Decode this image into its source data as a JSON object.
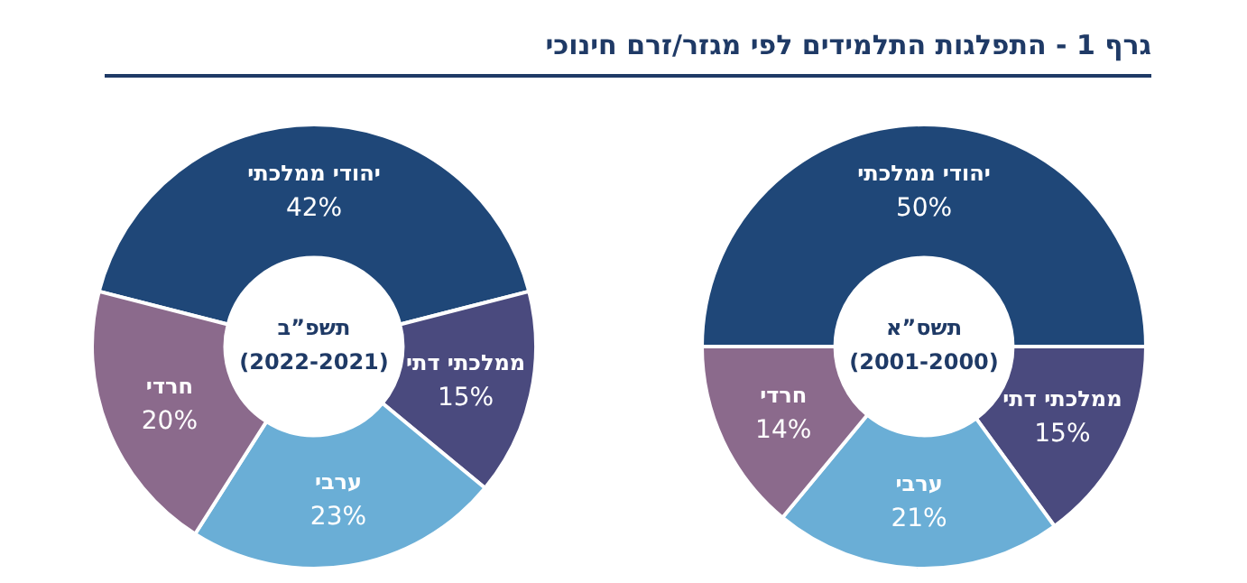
{
  "chart_data": [
    {
      "type": "donut",
      "title": "גרף 1 - התפלגות התלמידים לפי מגזר/זרם חינוכי",
      "annotations": [
        "תשס”א",
        "(2001-2000)"
      ],
      "categories": [
        "יהודי ממלכתי",
        "ממלכתי דתי",
        "ערבי",
        "חרדי"
      ],
      "values": [
        50,
        15,
        21,
        14
      ],
      "value_labels": [
        "50%",
        "15%",
        "21%",
        "14%"
      ],
      "colors": [
        "#1f4778",
        "#4a4a7e",
        "#6aaed6",
        "#8b6a8c"
      ],
      "legend": false
    },
    {
      "type": "donut",
      "annotations": [
        "תשפ”ב",
        "(2022-2021)"
      ],
      "categories": [
        "יהודי ממלכתי",
        "ממלכתי דתי",
        "ערבי",
        "חרדי"
      ],
      "values": [
        42,
        15,
        23,
        20
      ],
      "value_labels": [
        "42%",
        "15%",
        "23%",
        "20%"
      ],
      "colors": [
        "#1f4778",
        "#4a4a7e",
        "#6aaed6",
        "#8b6a8c"
      ],
      "legend": false
    }
  ]
}
